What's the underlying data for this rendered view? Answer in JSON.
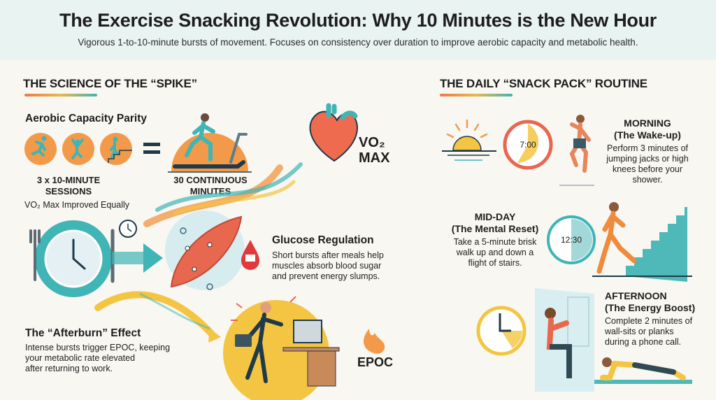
{
  "header": {
    "title": "The Exercise Snacking Revolution: Why 10 Minutes is the New Hour",
    "subtitle": "Vigorous 1-to-10-minute bursts of movement. Focuses on consistency over duration to improve aerobic capacity and metabolic health."
  },
  "science": {
    "heading": "THE SCIENCE OF THE “SPIKE”",
    "aerobic": {
      "title": "Aerobic Capacity Parity",
      "short_label_1": "3 x 10-MINUTE",
      "short_label_2": "SESSIONS",
      "long_label_1": "30 CONTINUOUS",
      "long_label_2": "MINUTES",
      "note": "VO₂ Max Improved Equally",
      "vo2_line1": "VO₂",
      "vo2_line2": "MAX"
    },
    "glucose": {
      "title": "Glucose Regulation",
      "lines": [
        "Short bursts after meals help",
        "muscles absorb blood sugar",
        "and prevent energy slumps."
      ]
    },
    "afterburn": {
      "title": "The “Afterburn” Effect",
      "lines": [
        "Intense bursts trigger EPOC, keeping",
        "your metabolic rate elevated",
        "after returning to work."
      ],
      "badge": "EPOC"
    }
  },
  "routine": {
    "heading": "THE DAILY “SNACK PACK” ROUTINE",
    "morning": {
      "title": "MORNING",
      "subtitle": "(The Wake-up)",
      "clock": "7:00",
      "lines": [
        "Perform 3 minutes of",
        "jumping jacks or high",
        "knees before your",
        "shower."
      ]
    },
    "midday": {
      "title": "MID-DAY",
      "subtitle": "(The Mental Reset)",
      "clock": "12:30",
      "lines": [
        "Take a 5-minute brisk",
        "walk up and down a",
        "flight of stairs."
      ]
    },
    "afternoon": {
      "title": "AFTERNOON",
      "subtitle": "(The Energy Boost)",
      "lines": [
        "Complete 2 minutes of",
        "wall-sits or planks",
        "during a phone call."
      ]
    }
  },
  "colors": {
    "orange": "#f08a3c",
    "teal": "#3fb5b5",
    "yellow": "#f4c542",
    "red": "#e5533d",
    "navy": "#1f3a4a"
  }
}
